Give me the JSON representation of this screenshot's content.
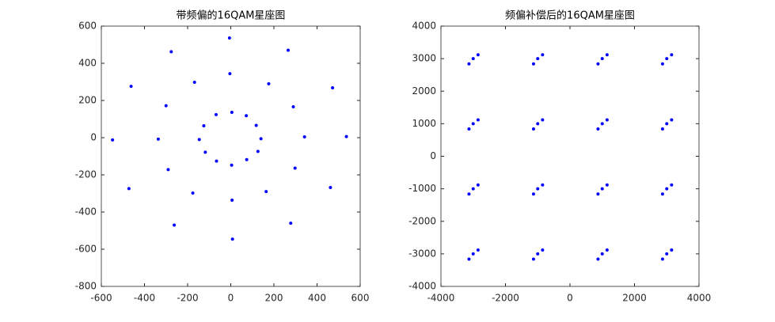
{
  "chart_data": [
    {
      "type": "scatter",
      "title": "带频偏的16QAM星座图",
      "color": "#0000ff",
      "xlim": [
        -600,
        600
      ],
      "ylim": [
        -800,
        600
      ],
      "xticks": [
        -600,
        -400,
        -200,
        0,
        200,
        400,
        600
      ],
      "yticks": [
        -800,
        -600,
        -400,
        -200,
        0,
        200,
        400,
        600
      ],
      "x": [
        140,
        118,
        72,
        5,
        -68,
        -125,
        -146,
        -118,
        -66,
        4,
        74,
        126,
        342,
        290,
        176,
        -4,
        -168,
        -300,
        -336,
        -290,
        -176,
        6,
        164,
        298,
        536,
        472,
        266,
        -6,
        -276,
        -462,
        -548,
        -472,
        -262,
        8,
        278,
        462
      ],
      "y": [
        -6,
        66,
        118,
        136,
        124,
        64,
        -10,
        -78,
        -126,
        -148,
        -118,
        -74,
        4,
        166,
        290,
        344,
        298,
        172,
        -8,
        -172,
        -298,
        -336,
        -290,
        -164,
        6,
        268,
        470,
        536,
        462,
        276,
        -12,
        -274,
        -470,
        -546,
        -460,
        -268
      ]
    },
    {
      "type": "scatter",
      "title": "频偏补偿后的16QAM星座图",
      "color": "#0000ff",
      "xlim": [
        -4000,
        4000
      ],
      "ylim": [
        -4000,
        4000
      ],
      "xticks": [
        -4000,
        -2000,
        0,
        2000,
        4000
      ],
      "yticks": [
        -4000,
        -3000,
        -2000,
        -1000,
        0,
        1000,
        2000,
        3000,
        4000
      ],
      "x": [
        -3000,
        -2850,
        -3130,
        -1000,
        -850,
        -1130,
        1000,
        1150,
        870,
        3000,
        3150,
        2870,
        -3000,
        -2850,
        -3130,
        -1000,
        -850,
        -1130,
        1000,
        1150,
        870,
        3000,
        3150,
        2870,
        -3000,
        -2850,
        -3130,
        -1000,
        -850,
        -1130,
        1000,
        1150,
        870,
        3000,
        3150,
        2870,
        -3000,
        -2850,
        -3130,
        -1000,
        -850,
        -1130,
        1000,
        1150,
        870,
        3000,
        3150,
        2870
      ],
      "y": [
        3000,
        3120,
        2840,
        3000,
        3120,
        2840,
        3000,
        3120,
        2840,
        3000,
        3120,
        2840,
        1000,
        1120,
        840,
        1000,
        1120,
        840,
        1000,
        1120,
        840,
        1000,
        1120,
        840,
        -1000,
        -880,
        -1160,
        -1000,
        -880,
        -1160,
        -1000,
        -880,
        -1160,
        -1000,
        -880,
        -1160,
        -3000,
        -2880,
        -3160,
        -3000,
        -2880,
        -3160,
        -3000,
        -2880,
        -3160,
        -3000,
        -2880,
        -3160
      ]
    }
  ]
}
